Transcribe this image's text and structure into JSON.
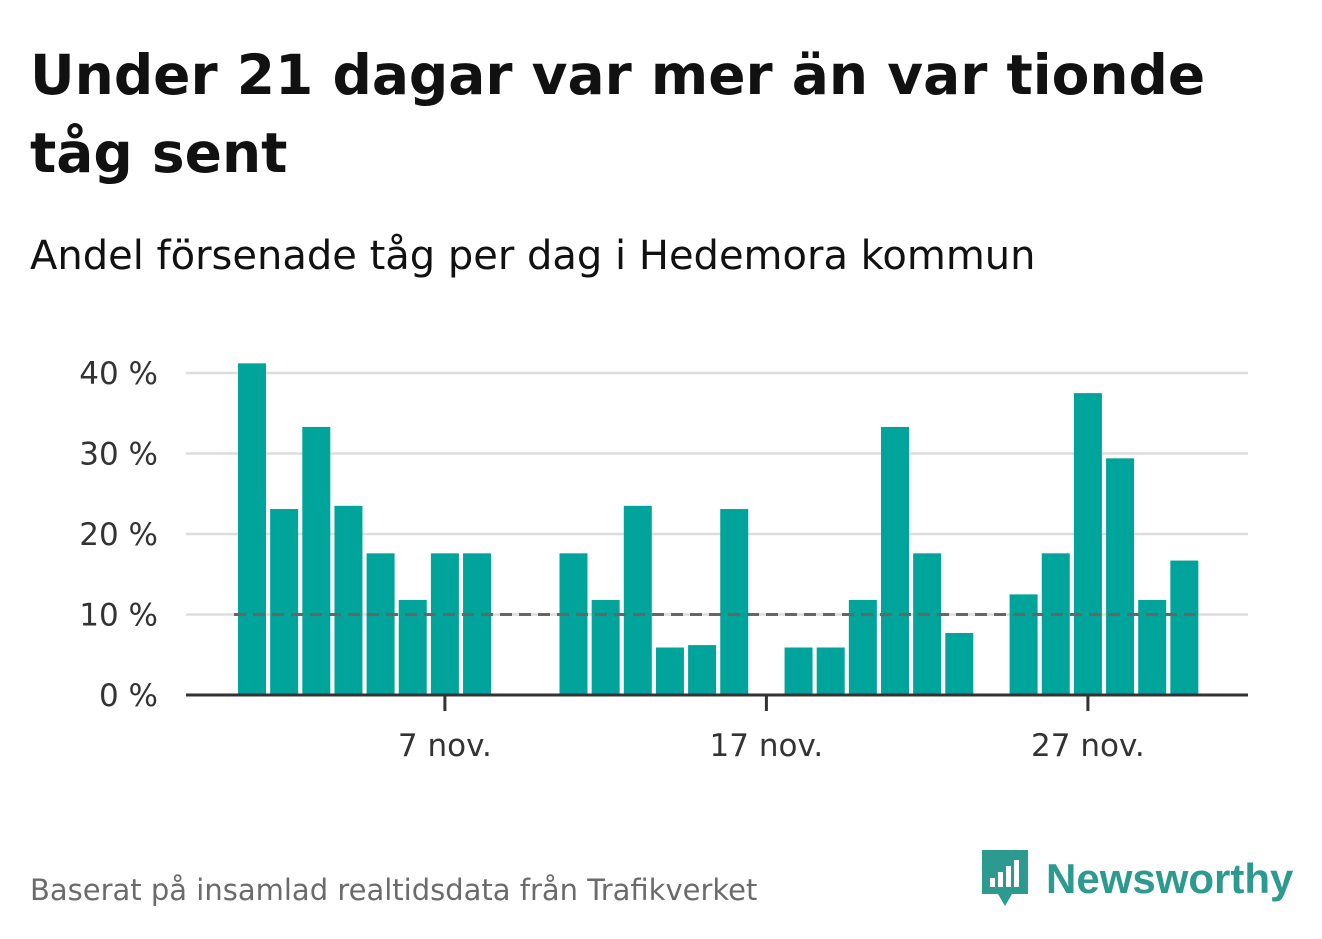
{
  "title": "Under 21 dagar var mer än var tionde tåg sent",
  "subtitle": "Andel försenade tåg per dag i Hedemora kommun",
  "footer": "Baserat på insamlad realtidsdata från Trafikverket",
  "brand": "Newsworthy",
  "colors": {
    "bar": "#00a49a",
    "grid": "#dddddd",
    "axis": "#333333",
    "reference": "#666666",
    "brand": "#2d9a8f"
  },
  "chart_data": {
    "type": "bar",
    "x_unit": "day",
    "x_start": "2021-11-01",
    "x_end": "2021-11-30",
    "values": [
      41.2,
      23.1,
      33.3,
      23.5,
      17.6,
      11.8,
      17.6,
      17.6,
      null,
      null,
      17.6,
      11.8,
      23.5,
      5.9,
      6.2,
      23.1,
      null,
      5.9,
      5.9,
      11.8,
      33.3,
      17.6,
      7.7,
      null,
      12.5,
      17.6,
      37.5,
      29.4,
      11.8,
      16.7
    ],
    "ylim": [
      0,
      40
    ],
    "yticks": [
      0,
      10,
      20,
      30,
      40
    ],
    "ytick_labels": [
      "0 %",
      "10 %",
      "20 %",
      "30 %",
      "40 %"
    ],
    "xtick_labels": [
      {
        "date": "2021-11-07",
        "label": "7 nov."
      },
      {
        "date": "2021-11-17",
        "label": "17 nov."
      },
      {
        "date": "2021-11-27",
        "label": "27 nov."
      }
    ],
    "reference_line": 10,
    "grid": true
  }
}
